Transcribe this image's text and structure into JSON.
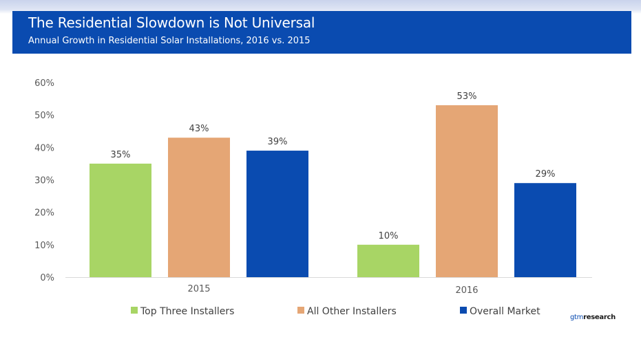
{
  "header": {
    "title": "The Residential Slowdown is Not Universal",
    "subtitle": "Annual Growth in Residential Solar Installations, 2016 vs. 2015"
  },
  "logo": {
    "prefix": "gtm",
    "suffix": "research"
  },
  "chart_data": {
    "type": "bar",
    "categories": [
      "2015",
      "2016"
    ],
    "series": [
      {
        "name": "Top Three Installers",
        "values": [
          35,
          10
        ],
        "labels": [
          "35%",
          "10%"
        ],
        "color": "#a8d565"
      },
      {
        "name": "All Other Installers",
        "values": [
          43,
          53
        ],
        "labels": [
          "43%",
          "53%"
        ],
        "color": "#e5a675"
      },
      {
        "name": "Overall Market",
        "values": [
          39,
          29
        ],
        "labels": [
          "39%",
          "29%"
        ],
        "color": "#0a4bb0"
      }
    ],
    "ylim": [
      0,
      60
    ],
    "yticks": [
      "0%",
      "10%",
      "20%",
      "30%",
      "40%",
      "50%",
      "60%"
    ],
    "grid": false,
    "legend": "bottom"
  }
}
